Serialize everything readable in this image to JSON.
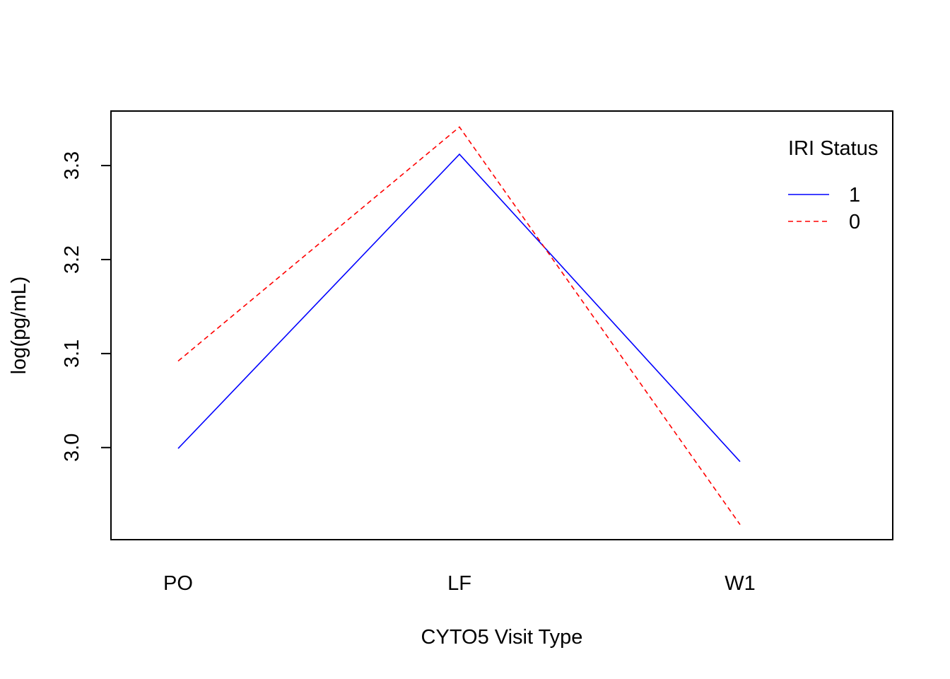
{
  "chart_data": {
    "type": "line",
    "title": "",
    "xlabel": "CYTO5 Visit Type",
    "ylabel": "log(pg/mL)",
    "categories": [
      "PO",
      "LF",
      "W1"
    ],
    "yticks": [
      "3.0",
      "3.1",
      "3.2",
      "3.3"
    ],
    "ylim": [
      2.902,
      3.358
    ],
    "grid": false,
    "legend": {
      "title": "IRI Status",
      "placement": "top-right"
    },
    "series": [
      {
        "name": "1",
        "values": [
          2.999,
          3.312,
          2.985
        ],
        "color": "#0000ff",
        "linestyle": "solid"
      },
      {
        "name": "0",
        "values": [
          3.092,
          3.341,
          2.918
        ],
        "color": "#ff0000",
        "linestyle": "dashed"
      }
    ]
  }
}
